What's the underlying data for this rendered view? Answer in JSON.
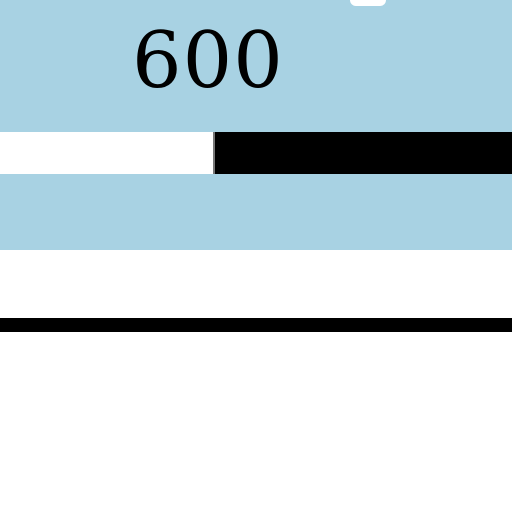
{
  "value_panel": {
    "value_text": "600",
    "background_color": "#a8d2e3",
    "bar": {
      "fill_fraction": 0.42,
      "fill_color": "#ffffff",
      "track_color": "#000000"
    }
  }
}
